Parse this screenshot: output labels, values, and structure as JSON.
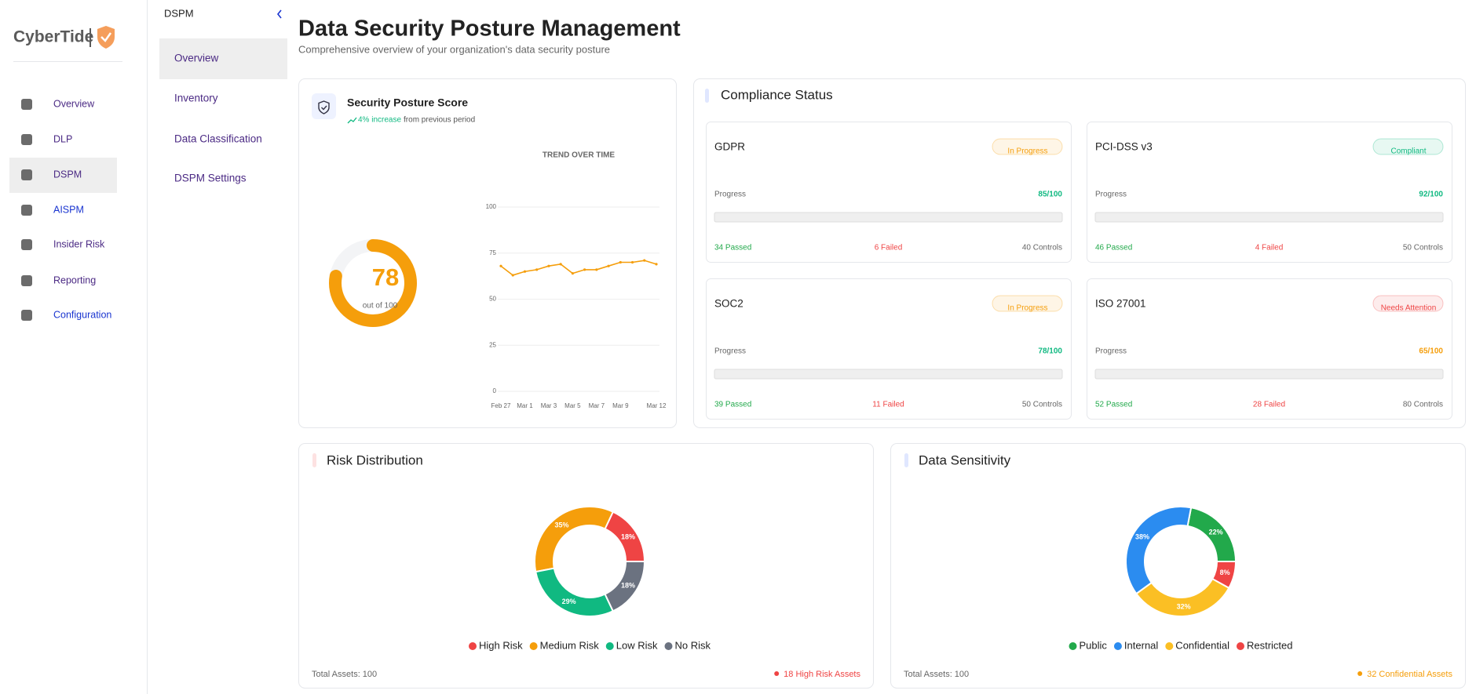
{
  "sidebar": {
    "logo": "CyberTide",
    "nav": [
      {
        "label": "Overview",
        "color": "#4b2a84"
      },
      {
        "label": "DLP",
        "color": "#4b2a84"
      },
      {
        "label": "DSPM",
        "color": "#4b2a84"
      },
      {
        "label": "AISPM",
        "color": "#1a35d0"
      },
      {
        "label": "Insider Risk",
        "color": "#4b2a84"
      },
      {
        "label": "Reporting",
        "color": "#4b2a84"
      },
      {
        "label": "Configuration",
        "color": "#1a35d0"
      }
    ],
    "active": 2
  },
  "subnav": {
    "title": "DSPM",
    "items": [
      "Overview",
      "Inventory",
      "Data Classification",
      "DSPM Settings"
    ],
    "active": 0
  },
  "header": {
    "title": "Data Security Posture Management",
    "subtitle": "Comprehensive overview of your organization's data security posture"
  },
  "posture": {
    "title": "Security Posture Score",
    "change": "4% increase",
    "change_note": "from previous period"
  },
  "compliance": {
    "title": "Compliance Status",
    "cards": [
      {
        "name": "GDPR",
        "status": "In Progress",
        "status_color": "#f59e0b",
        "progress_label": "Progress",
        "score": "85/100",
        "score_color": "#10b981",
        "passed": "34 Passed",
        "failed": "6 Failed",
        "controls": "40 Controls"
      },
      {
        "name": "PCI-DSS v3",
        "status": "Compliant",
        "status_color": "#10b981",
        "progress_label": "Progress",
        "score": "92/100",
        "score_color": "#10b981",
        "passed": "46 Passed",
        "failed": "4 Failed",
        "controls": "50 Controls"
      },
      {
        "name": "SOC2",
        "status": "In Progress",
        "status_color": "#f59e0b",
        "progress_label": "Progress",
        "score": "78/100",
        "score_color": "#10b981",
        "passed": "39 Passed",
        "failed": "11 Failed",
        "controls": "50 Controls"
      },
      {
        "name": "ISO 27001",
        "status": "Needs Attention",
        "status_color": "#ef4444",
        "progress_label": "Progress",
        "score": "65/100",
        "score_color": "#f59e0b",
        "passed": "52 Passed",
        "failed": "28 Failed",
        "controls": "80 Controls"
      }
    ]
  },
  "risk": {
    "title": "Risk Distribution",
    "total": "Total Assets: 100",
    "highlight": "18 High Risk Assets",
    "highlight_color": "#ef4444",
    "accent": "#fde2e2"
  },
  "sensitivity": {
    "title": "Data Sensitivity",
    "total": "Total Assets: 100",
    "highlight": "32 Confidential Assets",
    "highlight_color": "#f59e0b",
    "accent": "#e0e7ff"
  },
  "chart_data": [
    {
      "type": "gauge",
      "values": [
        78
      ],
      "ylim": [
        0,
        100
      ],
      "subtitle": "out of 100",
      "color": "#f59e0b"
    },
    {
      "type": "line",
      "title": "TREND OVER TIME",
      "categories": [
        "Feb 27",
        null,
        "Mar 1",
        null,
        "Mar 3",
        null,
        "Mar 5",
        null,
        "Mar 7",
        null,
        "Mar 9",
        null,
        null,
        "Mar 12"
      ],
      "values": [
        68,
        63,
        65,
        66,
        68,
        69,
        64,
        66,
        66,
        68,
        70,
        70,
        71,
        69
      ],
      "color": "#f59e0b",
      "ylim": [
        0,
        100
      ],
      "yticks": [
        0,
        25,
        50,
        75,
        100
      ],
      "grid": true
    },
    {
      "type": "pie",
      "categories": [
        "High Risk",
        "Medium Risk",
        "Low Risk",
        "No Risk"
      ],
      "values": [
        18,
        35,
        29,
        18
      ],
      "value_labels": [
        "18%",
        "35%",
        "29%",
        "18%"
      ],
      "colors": [
        "#ef4444",
        "#f59e0b",
        "#10b981",
        "#6b7280"
      ]
    },
    {
      "type": "pie",
      "categories": [
        "Public",
        "Internal",
        "Confidential",
        "Restricted"
      ],
      "values": [
        22,
        38,
        32,
        8
      ],
      "value_labels": [
        "22%",
        "38%",
        "32%",
        "8%"
      ],
      "colors": [
        "#22a94b",
        "#2b8cf0",
        "#fbbf24",
        "#ef4444"
      ]
    }
  ]
}
